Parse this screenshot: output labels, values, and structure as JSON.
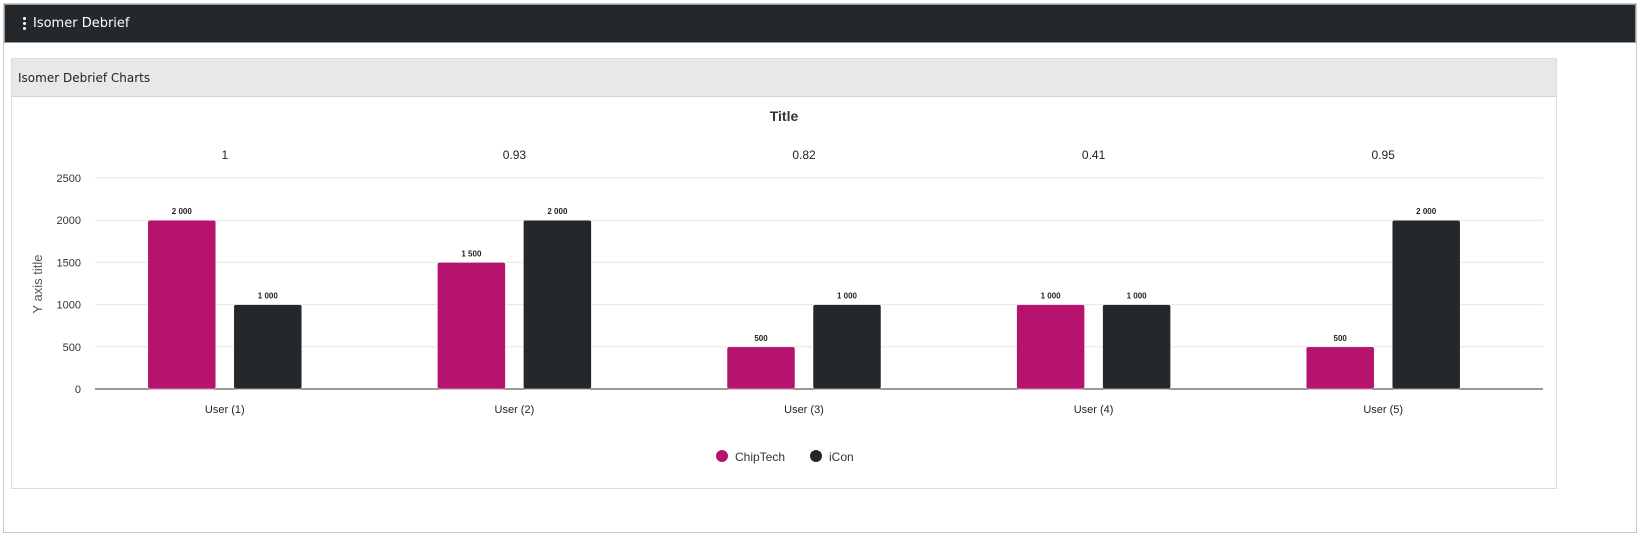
{
  "app": {
    "title": "Isomer Debrief",
    "menu_icon": "more-vertical-icon"
  },
  "panel": {
    "title": "Isomer Debrief Charts"
  },
  "colors": {
    "chiptech": "#b5136e",
    "icon": "#25282b",
    "appbar": "#25282b"
  },
  "chart_data": {
    "type": "bar",
    "title": "Title",
    "xlabel": "",
    "ylabel": "Y axis title",
    "ylim": [
      0,
      2500
    ],
    "yticks": [
      "0",
      "500",
      "1000",
      "1500",
      "2000",
      "2500"
    ],
    "categories": [
      "User (1)",
      "User (2)",
      "User (3)",
      "User (4)",
      "User (5)"
    ],
    "category_scores": [
      "1",
      "0.93",
      "0.82",
      "0.41",
      "0.95"
    ],
    "series": [
      {
        "name": "ChipTech",
        "color": "#b5136e",
        "values": [
          2000,
          1500,
          500,
          1000,
          500
        ],
        "labels": [
          "2 000",
          "1 500",
          "500",
          "1 000",
          "500"
        ]
      },
      {
        "name": "iCon",
        "color": "#25282b",
        "values": [
          1000,
          2000,
          1000,
          1000,
          2000
        ],
        "labels": [
          "1 000",
          "2 000",
          "1 000",
          "1 000",
          "2 000"
        ]
      }
    ],
    "legend": "bottom-center",
    "grid": true
  }
}
